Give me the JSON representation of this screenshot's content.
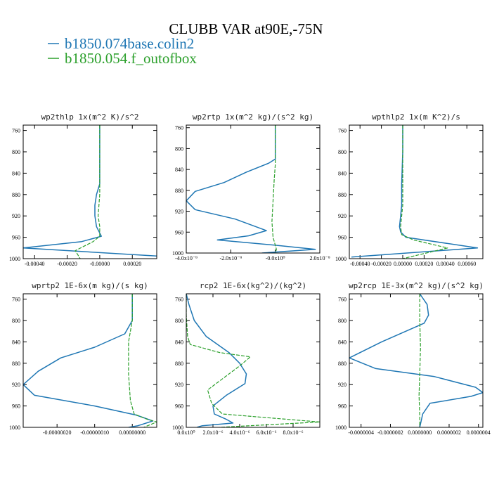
{
  "figure": {
    "title": "CLUBB VAR at90E,-75N",
    "legend": [
      {
        "label": "b1850.074base.colin2",
        "color": "#1f77b4",
        "dash": "solid"
      },
      {
        "label": "b1850.054.f_outofbox",
        "color": "#2ca02c",
        "dash": "dashed"
      }
    ]
  },
  "chart_data": [
    {
      "type": "line",
      "title": "wp2thlp  1x(m^2 K)/s^2",
      "xlim": [
        -0.00047,
        0.00035
      ],
      "ylim": [
        1000,
        750
      ],
      "y_ticks": [
        760,
        800,
        840,
        880,
        920,
        960,
        1000
      ],
      "x_ticks": [
        {
          "v": -0.0004,
          "label": "-0.00040"
        },
        {
          "v": -0.0002,
          "label": "-0.00020"
        },
        {
          "v": 0.0,
          "label": "-0.00000"
        },
        {
          "v": 0.0002,
          "label": "0.00020"
        }
      ],
      "series": [
        {
          "name": "b1850.074base.colin2",
          "x": [
            0.0,
            0.0,
            0.0,
            -2e-05,
            -3e-05,
            -3e-05,
            -2e-05,
            1e-05,
            -0.00011,
            -0.00047,
            0.00035
          ],
          "y": [
            750,
            800,
            860,
            880,
            900,
            920,
            940,
            958,
            968,
            980,
            995
          ]
        },
        {
          "name": "b1850.054.f_outofbox",
          "x": [
            0.0,
            0.0,
            0.0,
            0.0,
            -1e-05,
            0.0,
            0.0,
            -4e-05,
            -0.00015,
            -0.00012
          ],
          "y": [
            750,
            800,
            860,
            880,
            920,
            940,
            958,
            968,
            985,
            1000
          ]
        }
      ]
    },
    {
      "type": "line",
      "title": "wp2rtp  1x(m^2 kg)/(s^2 kg)",
      "xlim": [
        -4e-09,
        2e-09
      ],
      "ylim": [
        1000,
        755
      ],
      "y_ticks": [
        760,
        800,
        840,
        880,
        920,
        960,
        1000
      ],
      "x_ticks": [
        {
          "v": -4e-09,
          "label": "-4.0x10⁻⁹"
        },
        {
          "v": -2e-09,
          "label": "-2.0x10⁻⁹"
        },
        {
          "v": 0.0,
          "label": "-0.0x10⁰"
        },
        {
          "v": 2e-09,
          "label": "2.0x10⁻⁹"
        }
      ],
      "series": [
        {
          "name": "b1850.074base.colin2",
          "x": [
            0.0,
            0.0,
            -0.0,
            -3e-10,
            -1.3e-09,
            -2.3e-09,
            -3.6e-09,
            -4e-09,
            -3.6e-09,
            -1.8e-09,
            -4e-10,
            -1.2e-09,
            -2.6e-09,
            0.0,
            1.8e-09,
            -6e-10
          ],
          "y": [
            755,
            800,
            820,
            828,
            845,
            865,
            882,
            900,
            917,
            935,
            957,
            967,
            975,
            985,
            993,
            1000
          ]
        },
        {
          "name": "b1850.054.f_outofbox",
          "x": [
            0.0,
            0.0,
            0.0,
            -5e-11,
            -1e-10,
            -1.5e-10,
            -1e-10,
            0.0,
            5e-11,
            0.0
          ],
          "y": [
            755,
            800,
            830,
            860,
            900,
            940,
            970,
            985,
            993,
            1000
          ]
        }
      ]
    },
    {
      "type": "line",
      "title": "wpthlp2  1x(m K^2)/s",
      "xlim": [
        -0.0005,
        0.00075
      ],
      "ylim": [
        1000,
        750
      ],
      "y_ticks": [
        760,
        800,
        840,
        880,
        920,
        960,
        1000
      ],
      "x_ticks": [
        {
          "v": -0.0004,
          "label": "-0.00040"
        },
        {
          "v": -0.0002,
          "label": "-0.00020"
        },
        {
          "v": 0.0,
          "label": "0.00000"
        },
        {
          "v": 0.0002,
          "label": "0.00020"
        },
        {
          "v": 0.0004,
          "label": "0.00040"
        },
        {
          "v": 0.0006,
          "label": "0.00060"
        }
      ],
      "series": [
        {
          "name": "b1850.074base.colin2",
          "x": [
            0.0,
            0.0,
            -1e-05,
            -1e-05,
            -1e-05,
            -2e-05,
            -3e-05,
            -2e-05,
            3e-05,
            0.0007,
            -0.00048
          ],
          "y": [
            750,
            800,
            860,
            880,
            900,
            920,
            940,
            950,
            960,
            980,
            997
          ]
        },
        {
          "name": "b1850.054.f_outofbox",
          "x": [
            0.0,
            0.0,
            0.0,
            0.0,
            -1e-05,
            -2e-05,
            -1e-05,
            0.0001,
            0.00042,
            0.0
          ],
          "y": [
            750,
            800,
            860,
            900,
            920,
            940,
            955,
            965,
            980,
            1000
          ]
        }
      ]
    },
    {
      "type": "line",
      "title": "wprtp2  1E-6x(m kg)/(s kg)",
      "xlim": [
        -2.9e-07,
        6.5e-08
      ],
      "ylim": [
        1000,
        750
      ],
      "y_ticks": [
        760,
        800,
        840,
        880,
        920,
        960,
        1000
      ],
      "x_ticks": [
        {
          "v": -2e-07,
          "label": "-0.00000020"
        },
        {
          "v": -1e-07,
          "label": "-0.00000010"
        },
        {
          "v": 0.0,
          "label": "0.00000000"
        }
      ],
      "series": [
        {
          "name": "b1850.074base.colin2",
          "x": [
            0.0,
            0.0,
            -2e-08,
            -1e-07,
            -1.9e-07,
            -2.5e-07,
            -2.9e-07,
            -2.6e-07,
            -1e-07,
            1e-08,
            5.5e-08,
            1.5e-08,
            -1e-08
          ],
          "y": [
            750,
            800,
            825,
            850,
            870,
            895,
            920,
            940,
            960,
            977,
            988,
            997,
            1000
          ]
        },
        {
          "name": "b1850.054.f_outofbox",
          "x": [
            0.0,
            0.0,
            -1e-08,
            -1e-08,
            -5e-09,
            5e-09,
            4e-08,
            6.5e-08,
            3e-08
          ],
          "y": [
            750,
            800,
            840,
            900,
            950,
            975,
            985,
            990,
            1000
          ]
        }
      ]
    },
    {
      "type": "line",
      "title": "rcp2  1E-6x(kg^2)/(kg^2)",
      "xlim": [
        0.0,
        1e-05
      ],
      "ylim": [
        1000,
        750
      ],
      "y_ticks": [
        760,
        800,
        840,
        880,
        920,
        960,
        1000
      ],
      "x_ticks": [
        {
          "v": 0.0,
          "label": "0.0x10⁰"
        },
        {
          "v": 2e-06,
          "label": "2.0x10⁻⁶"
        },
        {
          "v": 4e-06,
          "label": "4.0x10⁻⁶"
        },
        {
          "v": 6e-06,
          "label": "6.0x10⁻⁶"
        },
        {
          "v": 8e-06,
          "label": "8.0x10⁻⁶"
        }
      ],
      "series": [
        {
          "name": "b1850.074base.colin2",
          "x": [
            0.0,
            2e-07,
            6e-07,
            1.5e-06,
            3.2e-06,
            4e-06,
            4.5e-06,
            4.4e-06,
            3e-06,
            2e-06,
            2.1e-06,
            3e-06,
            3.5e-06,
            1.2e-06,
            8e-07
          ],
          "y": [
            750,
            770,
            800,
            830,
            860,
            880,
            900,
            918,
            940,
            960,
            975,
            985,
            992,
            997,
            1000
          ]
        },
        {
          "name": "b1850.054.f_outofbox",
          "x": [
            0.0,
            0.0,
            1e-07,
            3e-07,
            2.5e-06,
            4.8e-06,
            4e-06,
            3.2e-06,
            1.6e-06,
            1.9e-06,
            2.7e-06,
            1e-05,
            2.5e-06
          ],
          "y": [
            750,
            790,
            830,
            845,
            860,
            868,
            885,
            900,
            930,
            955,
            975,
            990,
            1000
          ]
        }
      ]
    },
    {
      "type": "line",
      "title": "wp2rcp  1E-3x(m^2 kg)/(s^2 kg)",
      "xlim": [
        -4.8e-07,
        4.3e-07
      ],
      "ylim": [
        1000,
        750
      ],
      "y_ticks": [
        760,
        800,
        840,
        880,
        920,
        960,
        1000
      ],
      "x_ticks": [
        {
          "v": -4e-07,
          "label": "-0.0000004"
        },
        {
          "v": -2e-07,
          "label": "-0.0000002"
        },
        {
          "v": 0.0,
          "label": "0.0000000"
        },
        {
          "v": 2e-07,
          "label": "0.0000002"
        },
        {
          "v": 4e-07,
          "label": "0.0000004"
        }
      ],
      "series": [
        {
          "name": "b1850.074base.colin2",
          "x": [
            0.0,
            5e-08,
            6e-08,
            3e-08,
            -2.6e-07,
            -4.8e-07,
            -3e-07,
            1e-07,
            3.8e-07,
            4.3e-07,
            3.5e-07,
            7e-08,
            2e-08,
            0.0
          ],
          "y": [
            750,
            770,
            790,
            805,
            840,
            870,
            890,
            905,
            925,
            935,
            942,
            955,
            975,
            1000
          ]
        },
        {
          "name": "b1850.054.f_outofbox",
          "x": [
            0.0,
            0.0,
            5e-09,
            0.0,
            -5e-09,
            0.0,
            0.0
          ],
          "y": [
            750,
            800,
            850,
            900,
            940,
            980,
            1000
          ]
        }
      ]
    }
  ]
}
